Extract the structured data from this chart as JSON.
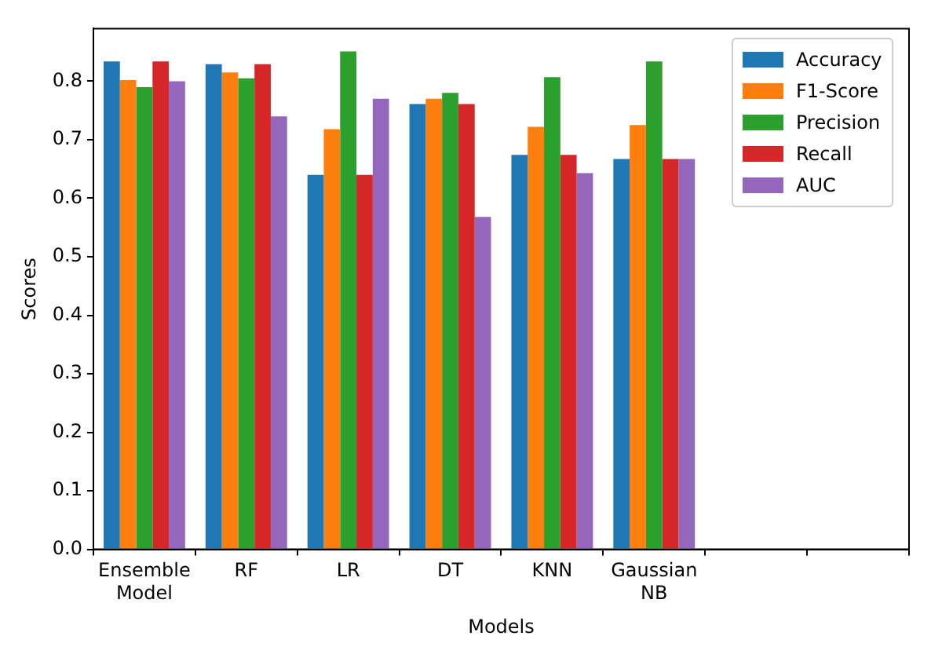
{
  "chart_data": {
    "type": "bar",
    "xlabel": "Models",
    "ylabel": "Scores",
    "categories": [
      "Ensemble\nModel",
      "RF",
      "LR",
      "DT",
      "KNN",
      "Gaussian\nNB",
      null,
      null
    ],
    "series": [
      {
        "name": "Accuracy",
        "color": "#1f77b4",
        "values": [
          0.834,
          0.829,
          0.64,
          0.761,
          0.674,
          0.667,
          null,
          null
        ]
      },
      {
        "name": "F1-Score",
        "color": "#ff7f0e",
        "values": [
          0.802,
          0.815,
          0.718,
          0.77,
          0.722,
          0.725,
          null,
          null
        ]
      },
      {
        "name": "Precision",
        "color": "#2ca02c",
        "values": [
          0.79,
          0.805,
          0.851,
          0.78,
          0.807,
          0.834,
          null,
          null
        ]
      },
      {
        "name": "Recall",
        "color": "#d62728",
        "values": [
          0.834,
          0.829,
          0.64,
          0.761,
          0.674,
          0.667,
          null,
          null
        ]
      },
      {
        "name": "AUC",
        "color": "#9467bd",
        "values": [
          0.8,
          0.74,
          0.77,
          0.568,
          0.643,
          0.667,
          null,
          null
        ]
      }
    ],
    "ylim": [
      0,
      0.89
    ],
    "yticks": [
      {
        "value": 0,
        "label": "0.0"
      },
      {
        "value": 0.1,
        "label": "0.1"
      },
      {
        "value": 0.2,
        "label": "0.2"
      },
      {
        "value": 0.3,
        "label": "0.3"
      },
      {
        "value": 0.4,
        "label": "0.4"
      },
      {
        "value": 0.5,
        "label": "0.5"
      },
      {
        "value": 0.6,
        "label": "0.6"
      },
      {
        "value": 0.7,
        "label": "0.7"
      },
      {
        "value": 0.8,
        "label": "0.8"
      }
    ],
    "grid": false,
    "legend": "top right"
  }
}
